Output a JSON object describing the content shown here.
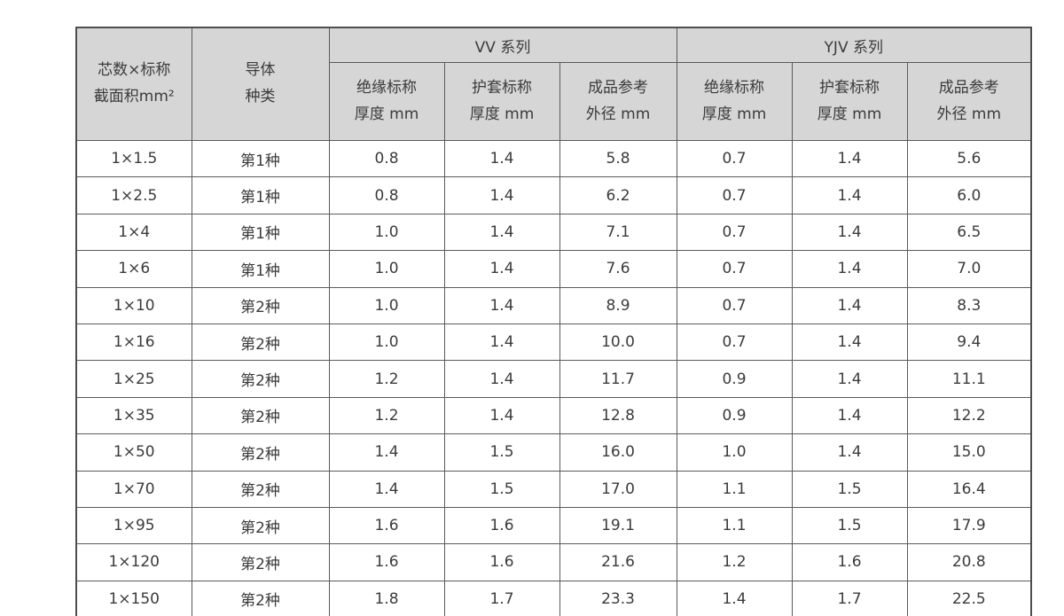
{
  "table": {
    "header": {
      "core_line1": "芯数×标称",
      "core_line2": "截面积mm²",
      "conductor_line1": "导体",
      "conductor_line2": "种类",
      "group_vv": "VV 系列",
      "group_yjv": "YJV 系列",
      "insulation_line1": "绝缘标称",
      "insulation_line2": "厚度 mm",
      "sheath_line1": "护套标称",
      "sheath_line2": "厚度 mm",
      "od_line1": "成品参考",
      "od_line2": "外径 mm"
    },
    "rows": [
      [
        "1×1.5",
        "第1种",
        "0.8",
        "1.4",
        "5.8",
        "0.7",
        "1.4",
        "5.6"
      ],
      [
        "1×2.5",
        "第1种",
        "0.8",
        "1.4",
        "6.2",
        "0.7",
        "1.4",
        "6.0"
      ],
      [
        "1×4",
        "第1种",
        "1.0",
        "1.4",
        "7.1",
        "0.7",
        "1.4",
        "6.5"
      ],
      [
        "1×6",
        "第1种",
        "1.0",
        "1.4",
        "7.6",
        "0.7",
        "1.4",
        "7.0"
      ],
      [
        "1×10",
        "第2种",
        "1.0",
        "1.4",
        "8.9",
        "0.7",
        "1.4",
        "8.3"
      ],
      [
        "1×16",
        "第2种",
        "1.0",
        "1.4",
        "10.0",
        "0.7",
        "1.4",
        "9.4"
      ],
      [
        "1×25",
        "第2种",
        "1.2",
        "1.4",
        "11.7",
        "0.9",
        "1.4",
        "11.1"
      ],
      [
        "1×35",
        "第2种",
        "1.2",
        "1.4",
        "12.8",
        "0.9",
        "1.4",
        "12.2"
      ],
      [
        "1×50",
        "第2种",
        "1.4",
        "1.5",
        "16.0",
        "1.0",
        "1.4",
        "15.0"
      ],
      [
        "1×70",
        "第2种",
        "1.4",
        "1.5",
        "17.0",
        "1.1",
        "1.5",
        "16.4"
      ],
      [
        "1×95",
        "第2种",
        "1.6",
        "1.6",
        "19.1",
        "1.1",
        "1.5",
        "17.9"
      ],
      [
        "1×120",
        "第2种",
        "1.6",
        "1.6",
        "21.6",
        "1.2",
        "1.6",
        "20.8"
      ],
      [
        "1×150",
        "第2种",
        "1.8",
        "1.7",
        "23.3",
        "1.4",
        "1.7",
        "22.5"
      ]
    ],
    "colors": {
      "header_bg": "#d6d6d6",
      "grid_line": "#5a5a5a",
      "text": "#3b3b3b",
      "page_bg": "#ffffff"
    }
  }
}
